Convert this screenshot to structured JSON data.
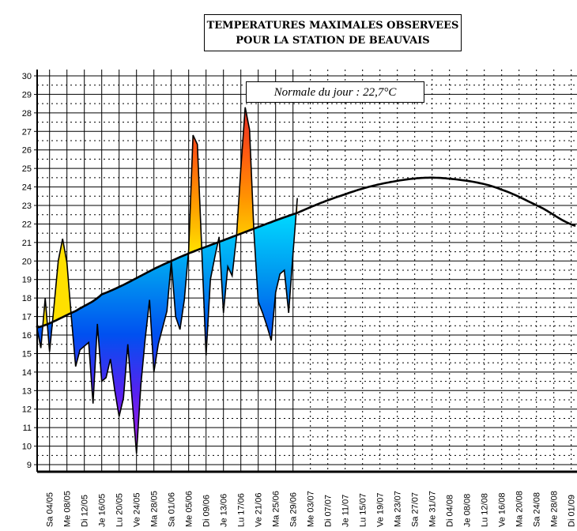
{
  "title": {
    "line1": "TEMPERATURES MAXIMALES OBSERVEES",
    "line2": "POUR LA STATION DE BEAUVAIS"
  },
  "legend": {
    "text": "Normale du jour : 22,7°C"
  },
  "chart_data": {
    "type": "area",
    "title": "TEMPERATURES MAXIMALES OBSERVEES POUR LA STATION DE BEAUVAIS",
    "xlabel": "",
    "ylabel": "",
    "ylim": [
      8.6,
      30.3
    ],
    "xlim": [
      "01/05",
      "02/09"
    ],
    "grid": true,
    "y_ticks": [
      9,
      10,
      11,
      12,
      13,
      14,
      15,
      16,
      17,
      18,
      19,
      20,
      21,
      22,
      23,
      24,
      25,
      26,
      27,
      28,
      29,
      30
    ],
    "x_ticks": [
      "Sa 04/05",
      "Me 08/05",
      "Di 12/05",
      "Je 16/05",
      "Lu 20/05",
      "Ve 24/05",
      "Ma 28/05",
      "Sa 01/06",
      "Me 05/06",
      "Di 09/06",
      "Je 13/06",
      "Lu 17/06",
      "Ve 21/06",
      "Ma 25/06",
      "Sa 29/06",
      "Me 03/07",
      "Di 07/07",
      "Je 11/07",
      "Lu 15/07",
      "Ve 19/07",
      "Ma 23/07",
      "Sa 27/07",
      "Me 31/07",
      "Di 04/08",
      "Je 08/08",
      "Lu 12/08",
      "Ve 16/08",
      "Ma 20/08",
      "Sa 24/08",
      "Me 28/08",
      "Di 01/09"
    ],
    "observed": {
      "dates": [
        "01/05",
        "02/05",
        "03/05",
        "04/05",
        "05/05",
        "06/05",
        "07/05",
        "08/05",
        "09/05",
        "10/05",
        "11/05",
        "12/05",
        "13/05",
        "14/05",
        "15/05",
        "16/05",
        "17/05",
        "18/05",
        "19/05",
        "20/05",
        "21/05",
        "22/05",
        "23/05",
        "24/05",
        "25/05",
        "26/05",
        "27/05",
        "28/05",
        "29/05",
        "30/05",
        "31/05",
        "01/06",
        "02/06",
        "03/06",
        "04/06",
        "05/06",
        "06/06",
        "07/06",
        "08/06",
        "09/06",
        "10/06",
        "11/06",
        "12/06",
        "13/06",
        "14/06",
        "15/06",
        "16/06",
        "17/06",
        "18/06",
        "19/06",
        "20/06",
        "21/06",
        "22/06",
        "23/06",
        "24/06",
        "25/06",
        "26/06",
        "27/06",
        "28/06",
        "29/06",
        "30/06"
      ],
      "values": [
        16.5,
        15.3,
        18.0,
        15.1,
        17.5,
        20.0,
        21.2,
        19.9,
        17.0,
        14.3,
        15.2,
        15.4,
        15.6,
        12.3,
        16.6,
        13.5,
        13.7,
        14.7,
        13.0,
        11.6,
        12.6,
        15.5,
        12.5,
        9.6,
        13.3,
        15.8,
        17.9,
        14.0,
        15.5,
        16.4,
        17.3,
        20.0,
        17.0,
        16.3,
        17.9,
        20.6,
        26.8,
        26.3,
        20.7,
        14.9,
        19.0,
        20.2,
        21.3,
        17.2,
        19.7,
        19.2,
        21.3,
        25.0,
        28.3,
        27.1,
        21.6,
        17.8,
        17.2,
        16.5,
        15.7,
        18.3,
        19.3,
        19.5,
        17.2,
        20.4,
        23.4
      ]
    },
    "normal": {
      "dates": [
        "01/05",
        "10/05",
        "16/05",
        "01/06",
        "15/06",
        "30/06",
        "11/07",
        "20/07",
        "30/07",
        "09/08",
        "16/08",
        "25/08",
        "02/09"
      ],
      "values": [
        16.4,
        17.3,
        18.2,
        20.0,
        21.3,
        22.6,
        23.6,
        24.2,
        24.5,
        24.3,
        23.85,
        22.9,
        21.9
      ]
    },
    "colors": {
      "above_normal": [
        "#ffe000",
        "#ff9a00",
        "#ff5a10",
        "#e02828"
      ],
      "below_normal": [
        "#00d8ff",
        "#0098f0",
        "#0050f0",
        "#5a20f0",
        "#b020e0"
      ],
      "lines": "#000000"
    }
  }
}
